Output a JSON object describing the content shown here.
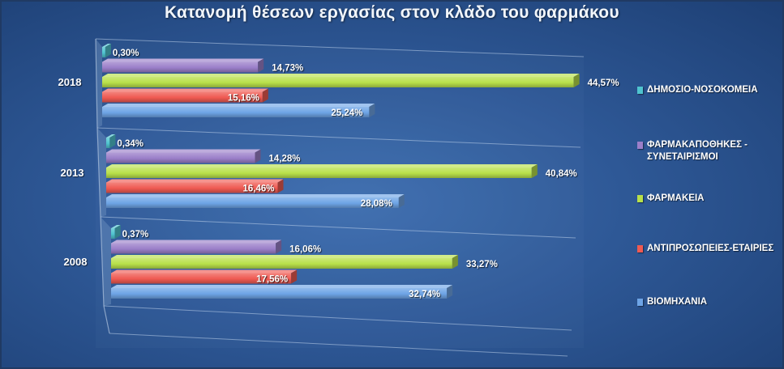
{
  "title": "Κατανομή θέσεων εργασίας στον κλάδο του φαρμάκου",
  "colors": {
    "hospital": "#4fc4cf",
    "warehouse": "#9b7fc9",
    "pharmacy": "#b8e04a",
    "company": "#ef5a52",
    "industry": "#6ea4e6"
  },
  "chart_data": {
    "type": "bar",
    "orientation": "horizontal",
    "categories": [
      "2018",
      "2013",
      "2008"
    ],
    "series": [
      {
        "name": "ΔΗΜΟΣΙΟ-ΝΟΣΟΚΟΜΕΙΑ",
        "color_key": "hospital",
        "values": [
          0.3,
          0.34,
          0.37
        ],
        "labels": [
          "0,30%",
          "0,34%",
          "0,37%"
        ]
      },
      {
        "name": "ΦΑΡΜΑΚΑΠΟΘΗΚΕΣ -\nΣΥΝΕΤΑΙΡΙΣΜΟΙ",
        "color_key": "warehouse",
        "values": [
          14.73,
          14.28,
          16.06
        ],
        "labels": [
          "14,73%",
          "14,28%",
          "16,06%"
        ]
      },
      {
        "name": "ΦΑΡΜΑΚΕΙΑ",
        "color_key": "pharmacy",
        "values": [
          44.57,
          40.84,
          33.27
        ],
        "labels": [
          "44,57%",
          "40,84%",
          "33,27%"
        ]
      },
      {
        "name": "ΑΝΤΙΠΡΟΣΩΠΕΙΕΣ-ΕΤΑΙΡΙΕΣ",
        "color_key": "company",
        "values": [
          15.16,
          16.46,
          17.56
        ],
        "labels": [
          "15,16%",
          "16,46%",
          "17,56%"
        ]
      },
      {
        "name": "ΒΙΟΜΗΧΑΝΙΑ",
        "color_key": "industry",
        "values": [
          25.24,
          28.08,
          32.74
        ],
        "labels": [
          "25,24%",
          "28,08%",
          "32,74%"
        ]
      }
    ],
    "xlim": [
      0,
      50
    ],
    "grid": true,
    "legend_position": "right",
    "style": "3d-perspective"
  }
}
